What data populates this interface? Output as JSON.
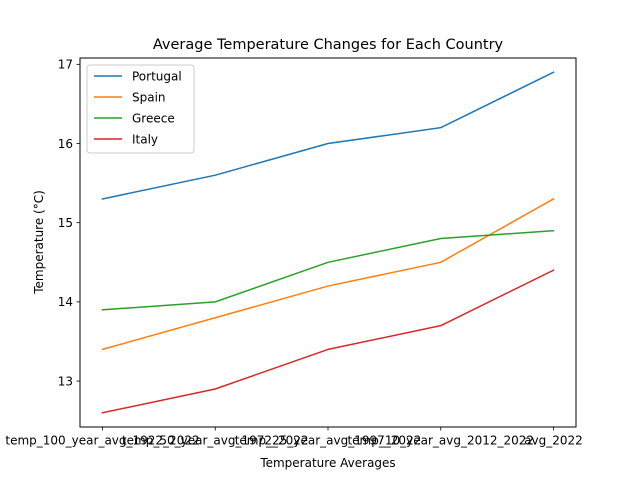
{
  "chart_data": {
    "type": "line",
    "title": "Average Temperature Changes for Each Country",
    "xlabel": "Temperature Averages",
    "ylabel": "Temperature (°C)",
    "categories": [
      "temp_100_year_avg_1922_2022",
      "temp_50_year_avg_1972_2022",
      "temp_25_year_avg_1997_2022",
      "temp_10_year_avg_2012_2022",
      "avg_2022"
    ],
    "ylim": [
      12.42,
      17.08
    ],
    "yticks": [
      13,
      14,
      15,
      16,
      17
    ],
    "grid": false,
    "legend_position": "top-left",
    "series": [
      {
        "name": "Portugal",
        "color": "#1f77b4",
        "values": [
          15.3,
          15.6,
          16.0,
          16.2,
          16.9
        ]
      },
      {
        "name": "Spain",
        "color": "#ff7f0e",
        "values": [
          13.4,
          13.8,
          14.2,
          14.5,
          15.3
        ]
      },
      {
        "name": "Greece",
        "color": "#2ca02c",
        "values": [
          13.9,
          14.0,
          14.5,
          14.8,
          14.9
        ]
      },
      {
        "name": "Italy",
        "color": "#d62728",
        "values": [
          12.6,
          12.9,
          13.4,
          13.7,
          14.4
        ]
      }
    ]
  }
}
